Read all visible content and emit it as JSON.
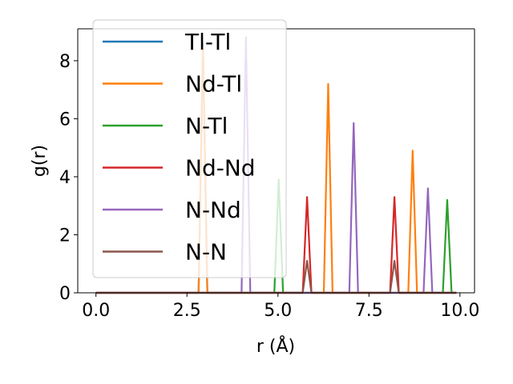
{
  "chart_data": {
    "type": "line",
    "title": "",
    "xlabel": "r (Å)",
    "ylabel": "g(r)",
    "xlim": [
      -0.5,
      10.4
    ],
    "ylim": [
      0,
      9.1
    ],
    "xticks": [
      0.0,
      2.5,
      5.0,
      7.5,
      10.0
    ],
    "xtick_labels": [
      "0.0",
      "2.5",
      "5.0",
      "7.5",
      "10.0"
    ],
    "yticks": [
      0,
      2,
      4,
      6,
      8
    ],
    "ytick_labels": [
      "0",
      "2",
      "4",
      "6",
      "8"
    ],
    "grid": false,
    "legend_position": "top-left",
    "series": [
      {
        "name": "Tl-Tl",
        "color": "#1f77b4",
        "peaks": [
          [
            2.94,
            8.6
          ]
        ]
      },
      {
        "name": "Nd-Tl",
        "color": "#ff7f0e",
        "peaks": [
          [
            2.94,
            8.5
          ],
          [
            6.38,
            7.2
          ],
          [
            8.7,
            4.9
          ]
        ]
      },
      {
        "name": "N-Tl",
        "color": "#2ca02c",
        "peaks": [
          [
            5.02,
            3.9
          ],
          [
            9.65,
            3.2
          ]
        ]
      },
      {
        "name": "Nd-Nd",
        "color": "#d62728",
        "peaks": [
          [
            5.8,
            3.3
          ],
          [
            8.2,
            3.3
          ]
        ]
      },
      {
        "name": "N-Nd",
        "color": "#9467bd",
        "peaks": [
          [
            4.12,
            8.8
          ],
          [
            7.08,
            5.85
          ],
          [
            9.12,
            3.6
          ]
        ]
      },
      {
        "name": "N-N",
        "color": "#8c564b",
        "peaks": [
          [
            5.8,
            1.1
          ],
          [
            8.2,
            1.1
          ]
        ]
      }
    ]
  }
}
